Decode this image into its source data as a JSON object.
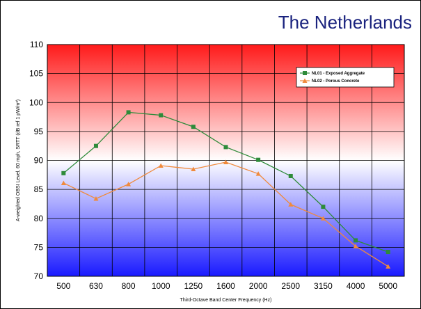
{
  "header": {
    "country": "The Netherlands"
  },
  "chart_data": {
    "type": "line",
    "categories": [
      "500",
      "630",
      "800",
      "1000",
      "1250",
      "1600",
      "2000",
      "2500",
      "3150",
      "4000",
      "5000"
    ],
    "series": [
      {
        "name": "NL01 - Exposed Aggregate",
        "color": "#2e8b3a",
        "marker": "square",
        "values": [
          87.8,
          92.5,
          98.3,
          97.8,
          95.8,
          92.3,
          90.1,
          87.3,
          82.0,
          76.2,
          74.2
        ]
      },
      {
        "name": "NL02 - Porous Concrete",
        "color": "#f08a3c",
        "marker": "triangle",
        "values": [
          86.1,
          83.4,
          85.9,
          89.1,
          88.5,
          89.7,
          87.7,
          82.4,
          80.0,
          75.2,
          71.7
        ]
      }
    ],
    "ylim": [
      70,
      110
    ],
    "yticks": [
      70,
      75,
      80,
      85,
      90,
      95,
      100,
      105,
      110
    ],
    "xlabel": "Third-Octave Band Center Frequency (Hz)",
    "ylabel": "A-weighted OBSI Level, 60 mph, SRTT (dB ref 1 pW/m²)",
    "grid": true,
    "legend_position": "top-right",
    "background_gradient": [
      "#ff1a1a",
      "#ffffff",
      "#1a1aff"
    ]
  }
}
